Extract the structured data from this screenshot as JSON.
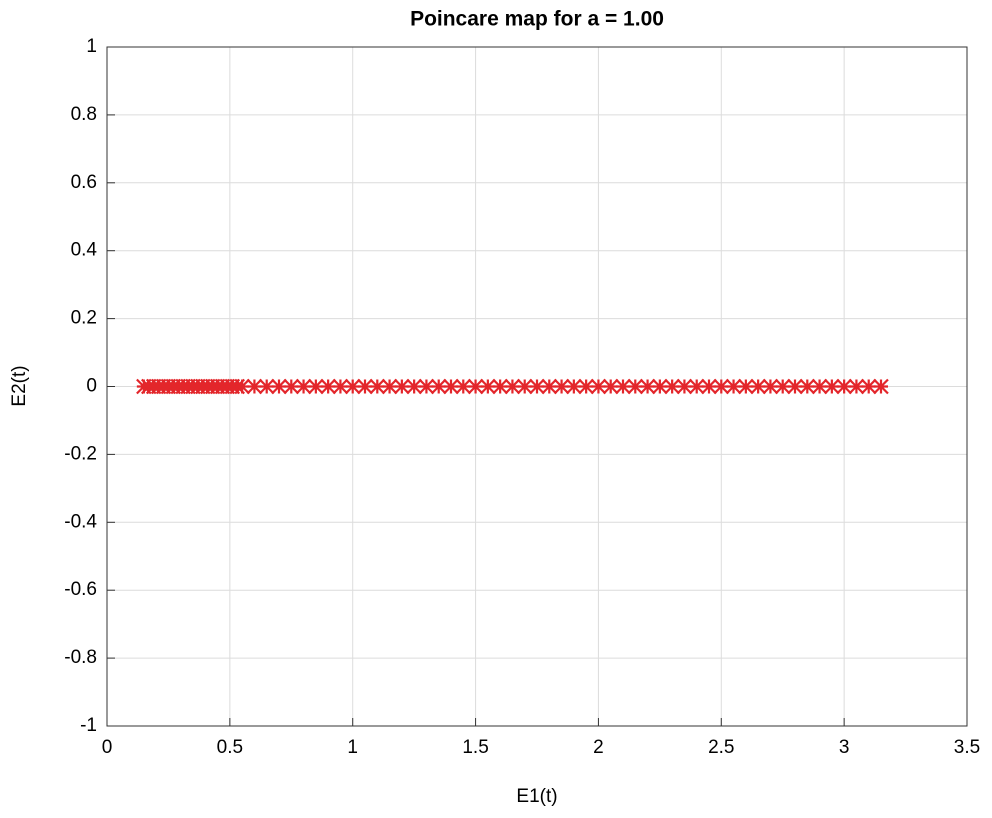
{
  "chart_data": {
    "type": "scatter",
    "title": "Poincare map for a = 1.00",
    "xlabel": "E1(t)",
    "ylabel": "E2(t)",
    "color": "#e3262b",
    "grid": true,
    "xlim": [
      0,
      3.5
    ],
    "xticks": [
      0,
      0.5,
      1,
      1.5,
      2,
      2.5,
      3,
      3.5
    ],
    "ylim": [
      -1,
      1
    ],
    "yticks": [
      -1,
      -0.8,
      -0.6,
      -0.4,
      -0.2,
      0,
      0.2,
      0.4,
      0.6,
      0.8,
      1
    ],
    "x": [
      0.15,
      0.17,
      0.19,
      0.21,
      0.23,
      0.25,
      0.27,
      0.29,
      0.31,
      0.33,
      0.35,
      0.37,
      0.39,
      0.41,
      0.43,
      0.45,
      0.47,
      0.49,
      0.51,
      0.53,
      0.55,
      0.6,
      0.65,
      0.7,
      0.75,
      0.8,
      0.85,
      0.9,
      0.95,
      1,
      1.05,
      1.1,
      1.15,
      1.2,
      1.25,
      1.3,
      1.35,
      1.4,
      1.45,
      1.5,
      1.55,
      1.6,
      1.65,
      1.7,
      1.75,
      1.8,
      1.85,
      1.9,
      1.95,
      2,
      2.05,
      2.1,
      2.15,
      2.2,
      2.25,
      2.3,
      2.35,
      2.4,
      2.45,
      2.5,
      2.55,
      2.6,
      2.65,
      2.7,
      2.75,
      2.8,
      2.85,
      2.9,
      2.95,
      3,
      3.05,
      3.1,
      3.15
    ],
    "values": [
      0,
      0,
      0,
      0,
      0,
      0,
      0,
      0,
      0,
      0,
      0,
      0,
      0,
      0,
      0,
      0,
      0,
      0,
      0,
      0,
      0,
      0,
      0,
      0,
      0,
      0,
      0,
      0,
      0,
      0,
      0,
      0,
      0,
      0,
      0,
      0,
      0,
      0,
      0,
      0,
      0,
      0,
      0,
      0,
      0,
      0,
      0,
      0,
      0,
      0,
      0,
      0,
      0,
      0,
      0,
      0,
      0,
      0,
      0,
      0,
      0,
      0,
      0,
      0,
      0,
      0,
      0,
      0,
      0,
      0,
      0,
      0,
      0
    ]
  }
}
